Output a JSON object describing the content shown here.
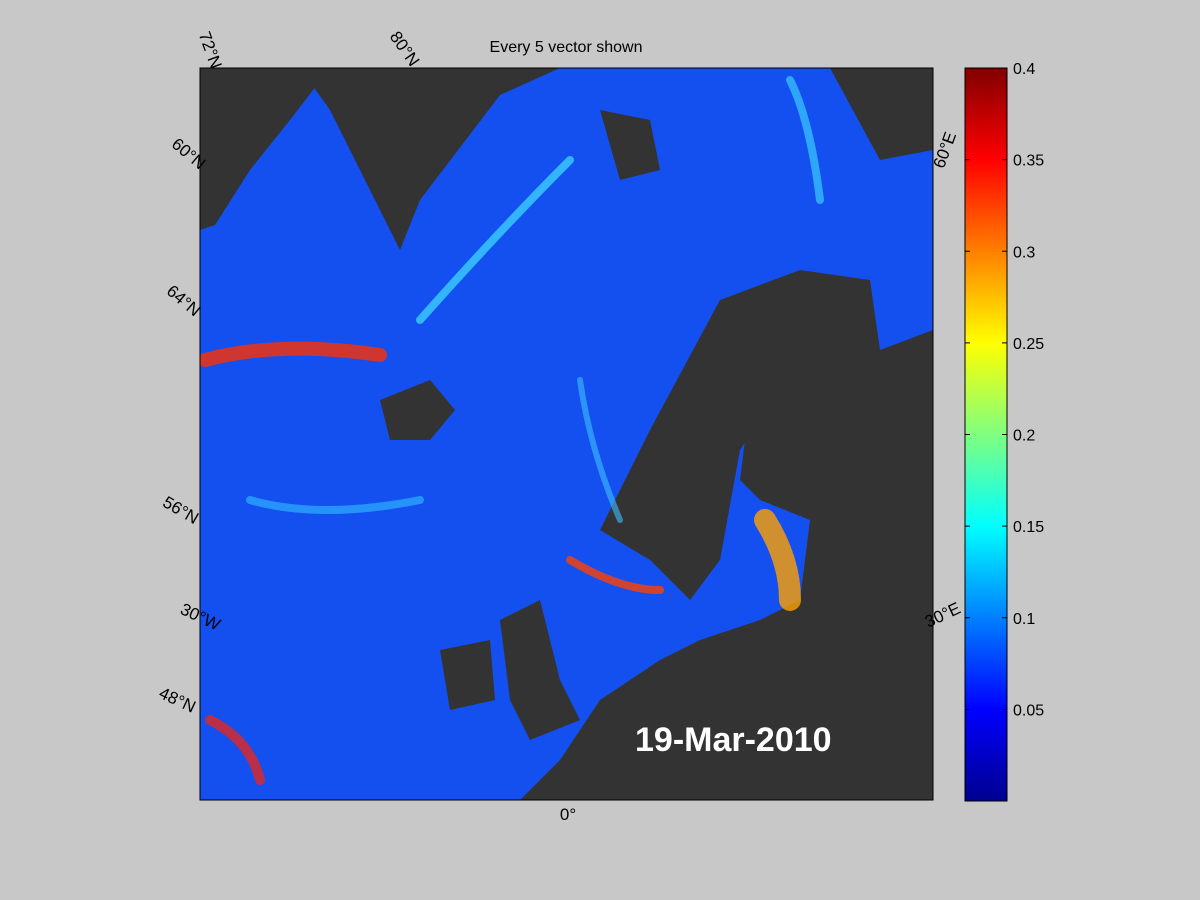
{
  "title": "Every 5 vector shown",
  "date": "19-Mar-2010",
  "graticule_labels": [
    "72°N",
    "80°N",
    "60°E",
    "60°N",
    "64°N",
    "56°N",
    "30°W",
    "48°N",
    "0°",
    "30°E"
  ],
  "colorbar": {
    "lim": [
      0,
      0.4
    ],
    "ticks": [
      0.05,
      0.1,
      0.15,
      0.2,
      0.25,
      0.3,
      0.35,
      0.4
    ]
  }
}
